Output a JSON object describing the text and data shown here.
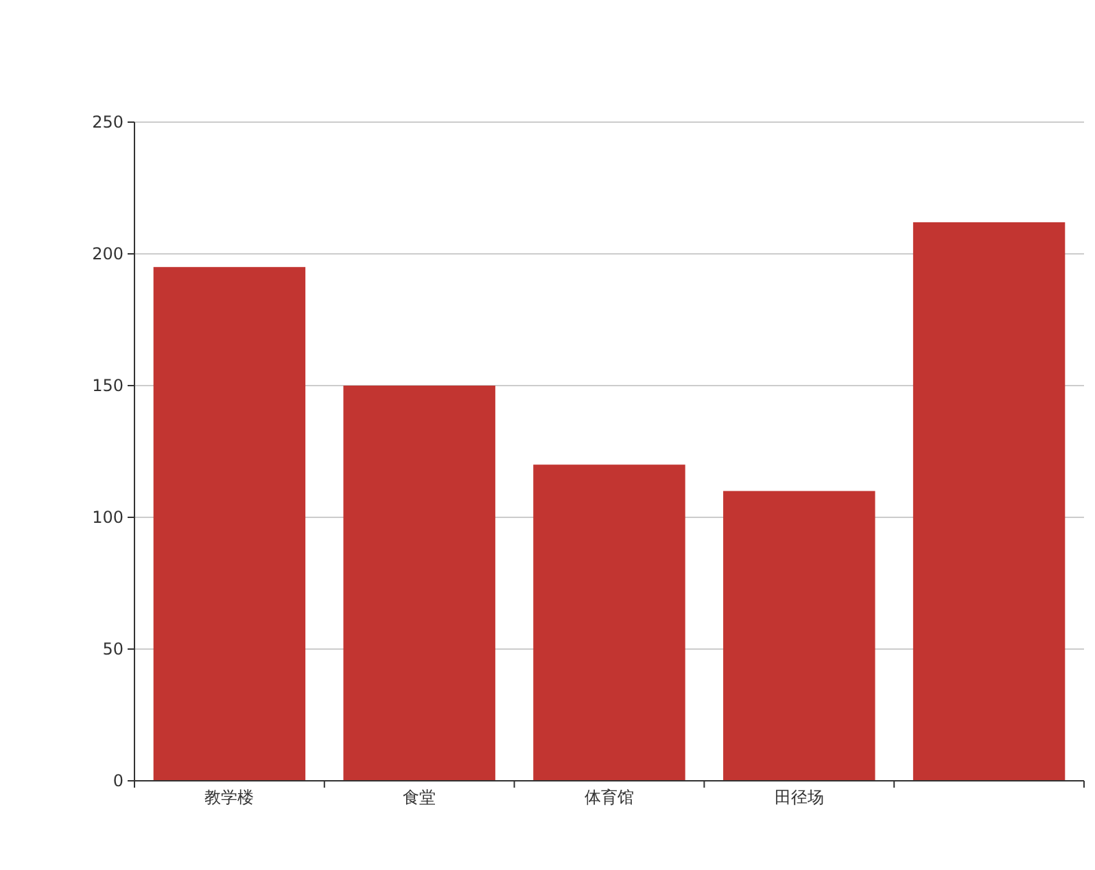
{
  "chart_data": {
    "type": "bar",
    "categories": [
      "教学楼",
      "食堂",
      "体育馆",
      "田径场",
      null
    ],
    "values": [
      195,
      150,
      120,
      110,
      212
    ],
    "color": "#c23531",
    "ylim": [
      0,
      250
    ],
    "yticks": [
      0,
      50,
      100,
      150,
      200,
      250
    ],
    "grid": "y"
  }
}
